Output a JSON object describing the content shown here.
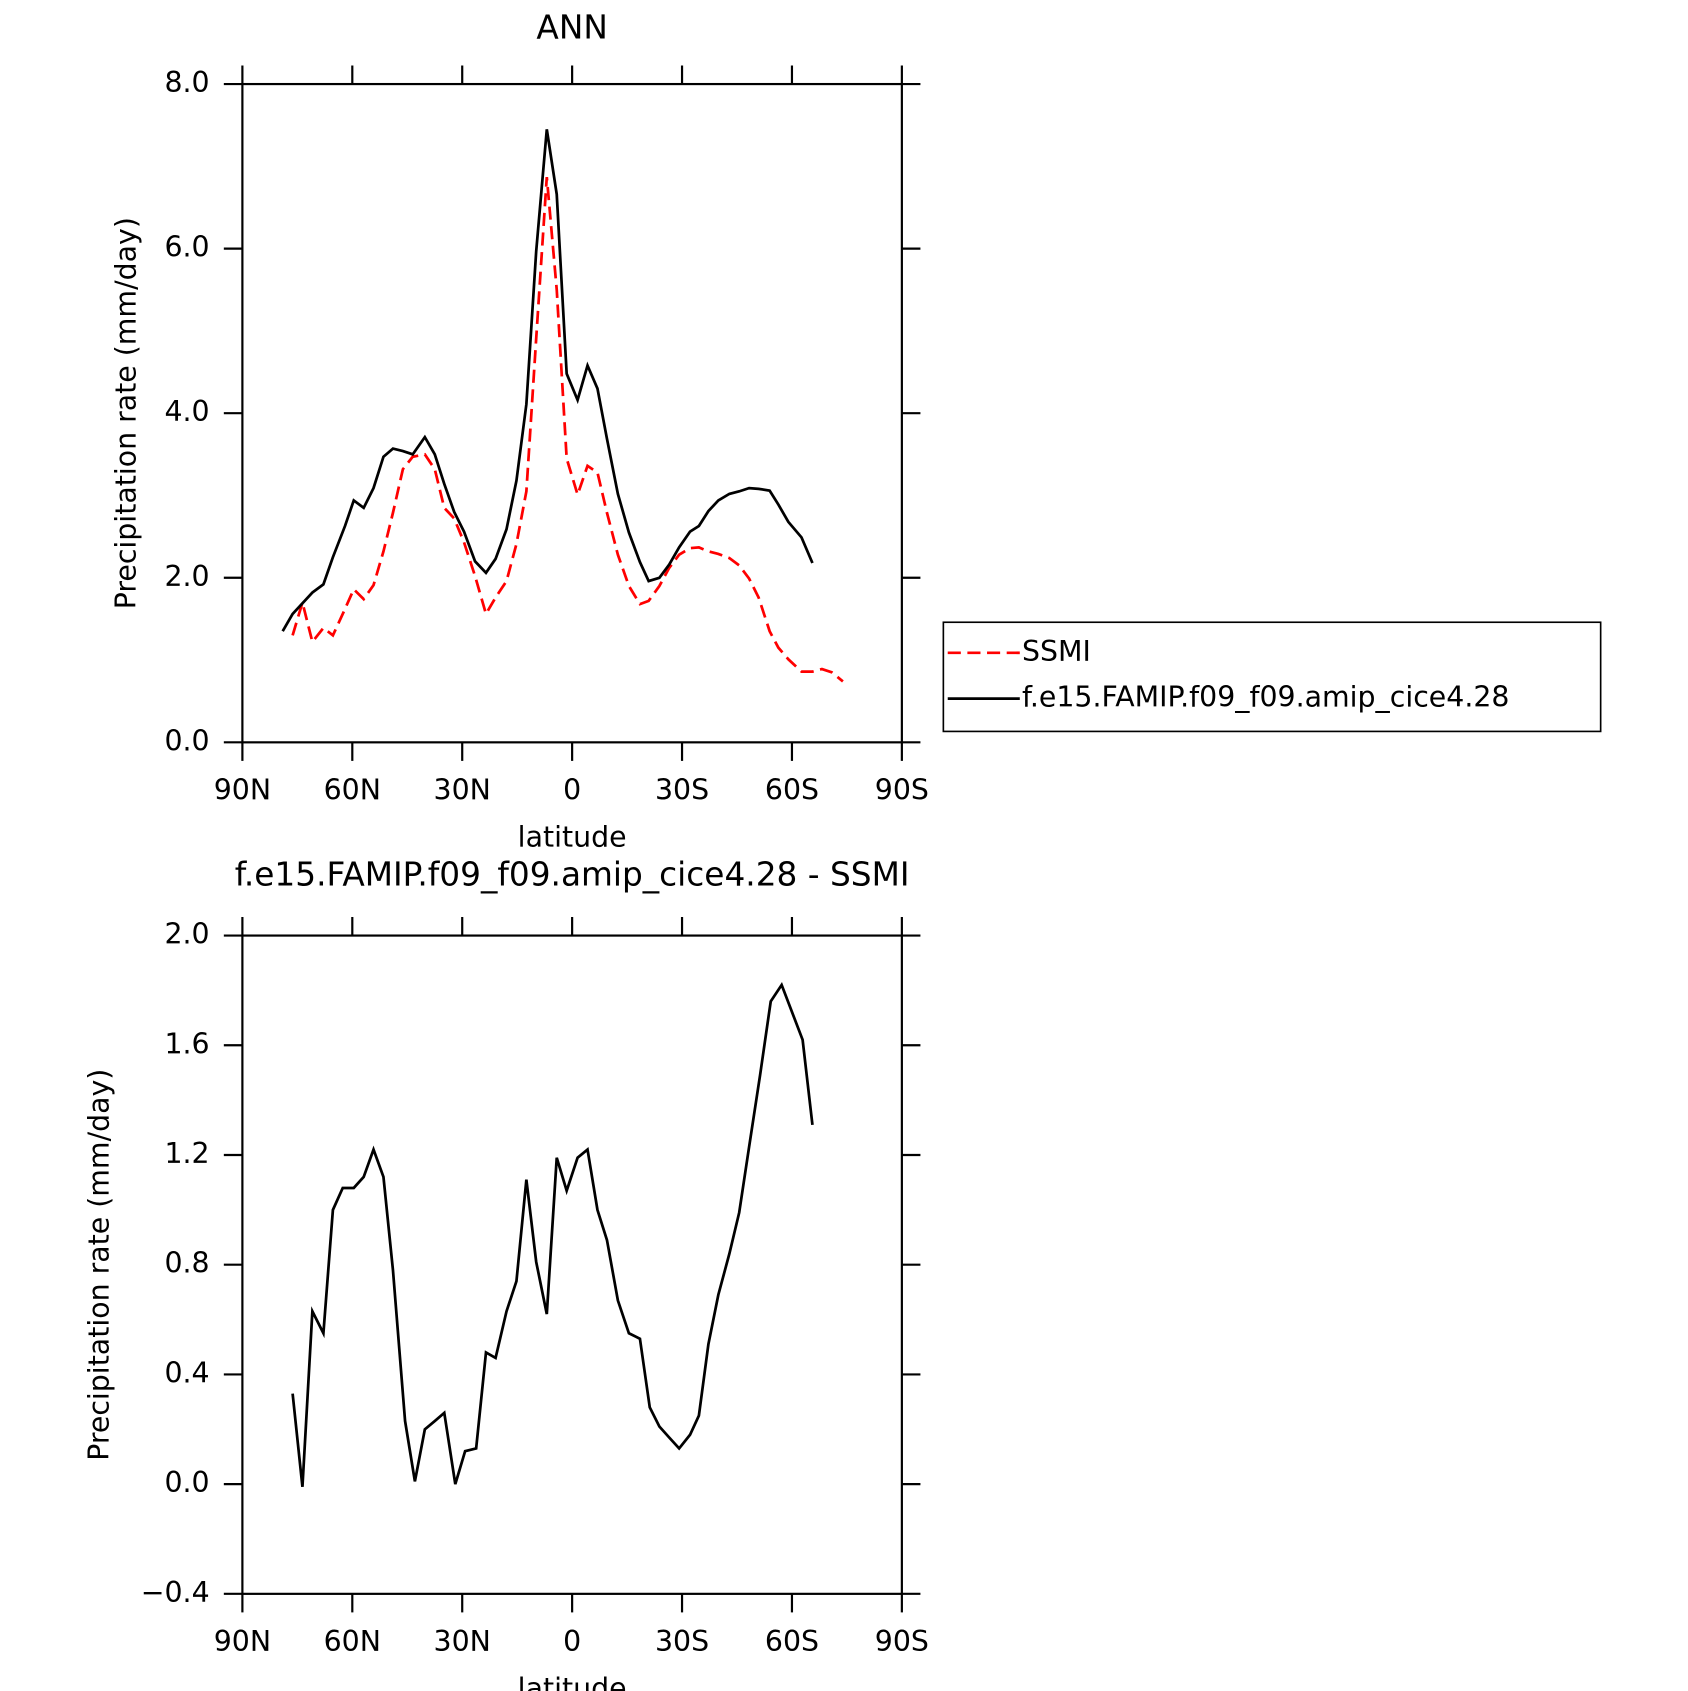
{
  "chart_data": [
    {
      "type": "line",
      "title": "ANN",
      "xlabel": "latitude",
      "ylabel": "Precipitation rate (mm/day)",
      "xlim": [
        90,
        -90
      ],
      "xticks": [
        {
          "value": 90,
          "label": "90N"
        },
        {
          "value": 60,
          "label": "60N"
        },
        {
          "value": 30,
          "label": "30N"
        },
        0,
        {
          "value": -30,
          "label": "30S"
        },
        {
          "value": -60,
          "label": "60S"
        },
        {
          "value": -90,
          "label": "90S"
        }
      ],
      "ylim": [
        0,
        8
      ],
      "yticks": [
        {
          "value": 0,
          "label": "0.0"
        },
        {
          "value": 2,
          "label": "2.0"
        },
        {
          "value": 4,
          "label": "4.0"
        },
        {
          "value": 6,
          "label": "6.0"
        },
        {
          "value": 8,
          "label": "8.0"
        }
      ],
      "legend": "right",
      "series": [
        {
          "name": "SSMI",
          "color": "#ff0000",
          "dashed": true,
          "x": [
            76.3,
            73.6,
            70.9,
            67.9,
            65.3,
            62.6,
            59.6,
            56.9,
            54.2,
            51.5,
            48.9,
            46.2,
            43.5,
            40.2,
            37.5,
            34.9,
            32.2,
            29.5,
            26.5,
            23.5,
            20.9,
            17.9,
            15.2,
            12.5,
            9.8,
            6.9,
            4.2,
            1.5,
            -1.5,
            -4.2,
            -6.9,
            -9.5,
            -12.5,
            -15.5,
            -18.5,
            -20.9,
            -23.8,
            -26.5,
            -29.2,
            -32.2,
            -34.6,
            -37.2,
            -39.9,
            -42.9,
            -45.6,
            -48.3,
            -50.9,
            -53.9,
            -56.3,
            -59.0,
            -62.6,
            -65.6,
            -68.2,
            -70.9,
            -73.9
          ],
          "values": [
            1.3,
            1.7,
            1.22,
            1.39,
            1.3,
            1.56,
            1.86,
            1.74,
            1.91,
            2.32,
            2.79,
            3.32,
            3.47,
            3.5,
            3.32,
            2.85,
            2.72,
            2.43,
            2.02,
            1.56,
            1.76,
            1.96,
            2.41,
            3.05,
            4.91,
            6.87,
            5.5,
            3.45,
            3.01,
            3.36,
            3.28,
            2.79,
            2.28,
            1.9,
            1.68,
            1.72,
            1.9,
            2.12,
            2.28,
            2.36,
            2.37,
            2.32,
            2.29,
            2.24,
            2.15,
            1.99,
            1.76,
            1.35,
            1.15,
            1.01,
            0.86,
            0.86,
            0.89,
            0.85,
            0.74
          ]
        },
        {
          "name": "f.e15.FAMIP.f09_f09.amip_cice4.28",
          "color": "#000000",
          "dashed": false,
          "x": [
            79.0,
            76.3,
            70.9,
            67.9,
            65.3,
            62.0,
            59.6,
            56.9,
            54.2,
            51.5,
            48.9,
            46.2,
            43.5,
            40.2,
            37.5,
            34.9,
            32.2,
            29.5,
            26.5,
            23.5,
            20.9,
            17.9,
            15.2,
            12.5,
            9.8,
            6.9,
            4.2,
            1.5,
            -1.5,
            -4.2,
            -6.9,
            -9.5,
            -12.5,
            -15.5,
            -18.5,
            -20.9,
            -23.8,
            -26.5,
            -29.2,
            -32.2,
            -34.6,
            -37.2,
            -39.9,
            -42.9,
            -45.6,
            -48.3,
            -50.9,
            -53.9,
            -56.3,
            -59.0,
            -62.6,
            -65.6
          ],
          "values": [
            1.35,
            1.56,
            1.82,
            1.92,
            2.25,
            2.63,
            2.94,
            2.85,
            3.09,
            3.47,
            3.57,
            3.54,
            3.5,
            3.71,
            3.5,
            3.14,
            2.8,
            2.56,
            2.2,
            2.06,
            2.23,
            2.59,
            3.18,
            4.11,
            5.97,
            7.45,
            6.66,
            4.48,
            4.16,
            4.58,
            4.3,
            3.69,
            3.02,
            2.55,
            2.19,
            1.96,
            2.0,
            2.16,
            2.37,
            2.56,
            2.63,
            2.81,
            2.94,
            3.02,
            3.05,
            3.09,
            3.08,
            3.06,
            2.89,
            2.68,
            2.49,
            2.18
          ]
        }
      ]
    },
    {
      "type": "line",
      "title": "f.e15.FAMIP.f09_f09.amip_cice4.28 - SSMI",
      "xlabel": "latitude",
      "ylabel": "Precipitation rate (mm/day)",
      "xlim": [
        90,
        -90
      ],
      "xticks": [
        {
          "value": 90,
          "label": "90N"
        },
        {
          "value": 60,
          "label": "60N"
        },
        {
          "value": 30,
          "label": "30N"
        },
        0,
        {
          "value": -30,
          "label": "30S"
        },
        {
          "value": -60,
          "label": "60S"
        },
        {
          "value": -90,
          "label": "90S"
        }
      ],
      "ylim": [
        -0.4,
        2.0
      ],
      "yticks": [
        {
          "value": -0.4,
          "label": "−0.4"
        },
        {
          "value": 0,
          "label": "0.0"
        },
        {
          "value": 0.4,
          "label": "0.4"
        },
        {
          "value": 0.8,
          "label": "0.8"
        },
        {
          "value": 1.2,
          "label": "1.2"
        },
        {
          "value": 1.6,
          "label": "1.6"
        },
        {
          "value": 2.0,
          "label": "2.0"
        }
      ],
      "series": [
        {
          "color": "#000000",
          "dashed": false,
          "x": [
            76.3,
            73.6,
            70.9,
            67.9,
            65.3,
            62.6,
            59.6,
            56.9,
            54.2,
            51.5,
            48.9,
            45.6,
            42.9,
            40.2,
            37.5,
            34.9,
            31.9,
            29.2,
            26.2,
            23.5,
            20.9,
            17.9,
            15.2,
            12.5,
            9.8,
            6.9,
            4.2,
            1.5,
            -1.5,
            -4.2,
            -6.9,
            -9.5,
            -12.5,
            -15.5,
            -18.5,
            -21.2,
            -23.8,
            -26.5,
            -29.2,
            -32.2,
            -34.6,
            -37.2,
            -39.9,
            -42.9,
            -45.6,
            -48.3,
            -51.3,
            -54.2,
            -57.2,
            -62.9,
            -65.6
          ],
          "values": [
            0.33,
            -0.01,
            0.63,
            0.55,
            1.0,
            1.08,
            1.08,
            1.12,
            1.22,
            1.12,
            0.78,
            0.23,
            0.01,
            0.2,
            0.23,
            0.26,
            0.0,
            0.12,
            0.13,
            0.48,
            0.46,
            0.63,
            0.74,
            1.11,
            0.81,
            0.62,
            1.19,
            1.07,
            1.19,
            1.22,
            1.0,
            0.89,
            0.67,
            0.55,
            0.53,
            0.28,
            0.21,
            0.17,
            0.13,
            0.18,
            0.25,
            0.51,
            0.69,
            0.84,
            0.99,
            1.23,
            1.49,
            1.76,
            1.82,
            1.62,
            1.31
          ]
        }
      ]
    }
  ]
}
